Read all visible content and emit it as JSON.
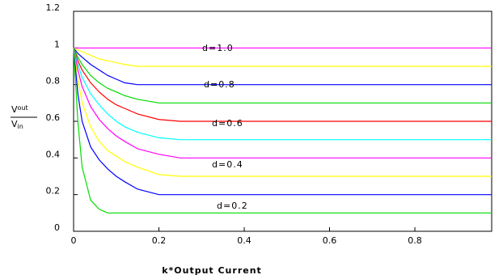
{
  "chart_data": {
    "type": "line",
    "xlabel": "k*Output Current",
    "ylabel": {
      "numerator": [
        "V",
        "out"
      ],
      "denominator": [
        "V",
        "in"
      ]
    },
    "annotations": [
      "d=1.0",
      "d=0.8",
      "d=0.6",
      "d=0.4",
      "d=0.2"
    ],
    "x": [
      0,
      0.01,
      0.02,
      0.04,
      0.06,
      0.08,
      0.1,
      0.12,
      0.15,
      0.2,
      0.25,
      0.3,
      0.98
    ],
    "series": [
      {
        "color": "#ff00ff",
        "values": [
          1,
          1,
          1,
          1,
          1,
          1,
          1,
          1,
          1,
          1,
          1,
          1,
          1
        ]
      },
      {
        "color": "#ffff00",
        "values": [
          1,
          0.99,
          0.98,
          0.96,
          0.94,
          0.93,
          0.92,
          0.91,
          0.9,
          0.9,
          0.9,
          0.9,
          0.9
        ]
      },
      {
        "color": "#0000ff",
        "values": [
          1,
          0.97,
          0.95,
          0.91,
          0.88,
          0.85,
          0.83,
          0.81,
          0.8,
          0.8,
          0.8,
          0.8,
          0.8
        ]
      },
      {
        "color": "#00dd00",
        "values": [
          1,
          0.95,
          0.91,
          0.85,
          0.81,
          0.78,
          0.76,
          0.74,
          0.72,
          0.7,
          0.7,
          0.7,
          0.7
        ]
      },
      {
        "color": "#ff0000",
        "values": [
          1,
          0.93,
          0.88,
          0.81,
          0.76,
          0.72,
          0.69,
          0.67,
          0.64,
          0.61,
          0.6,
          0.6,
          0.6
        ]
      },
      {
        "color": "#00ffff",
        "values": [
          1,
          0.91,
          0.84,
          0.75,
          0.69,
          0.64,
          0.6,
          0.57,
          0.54,
          0.51,
          0.5,
          0.5,
          0.5
        ]
      },
      {
        "color": "#ff00ff",
        "values": [
          1,
          0.88,
          0.79,
          0.68,
          0.61,
          0.56,
          0.52,
          0.49,
          0.45,
          0.42,
          0.4,
          0.4,
          0.4
        ]
      },
      {
        "color": "#ffff00",
        "values": [
          1,
          0.83,
          0.7,
          0.57,
          0.49,
          0.44,
          0.41,
          0.38,
          0.35,
          0.31,
          0.3,
          0.3,
          0.3
        ]
      },
      {
        "color": "#0000ff",
        "values": [
          1,
          0.75,
          0.6,
          0.46,
          0.39,
          0.34,
          0.3,
          0.27,
          0.23,
          0.2,
          0.2,
          0.2,
          0.2
        ]
      },
      {
        "color": "#00dd00",
        "values": [
          1,
          0.6,
          0.35,
          0.17,
          0.12,
          0.1,
          0.1,
          0.1,
          0.1,
          0.1,
          0.1,
          0.1,
          0.1
        ]
      }
    ],
    "xlim": [
      0,
      0.98
    ],
    "ylim": [
      0,
      1.2
    ],
    "xticks": [
      0,
      0.2,
      0.4,
      0.6,
      0.8
    ],
    "yticks": [
      0,
      0.2,
      0.4,
      0.6,
      0.8,
      1,
      1.2
    ]
  }
}
